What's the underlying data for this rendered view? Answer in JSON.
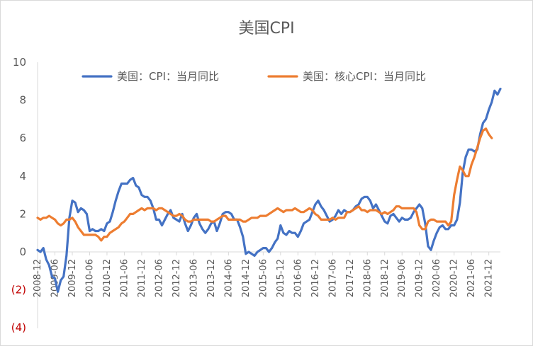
{
  "chart_data": {
    "type": "line",
    "title": "美国CPI",
    "xlabel": "",
    "ylabel": "",
    "ylim": [
      -4,
      10
    ],
    "y_ticks": [
      {
        "value": 10,
        "label": "10"
      },
      {
        "value": 8,
        "label": "8"
      },
      {
        "value": 6,
        "label": "6"
      },
      {
        "value": 4,
        "label": "4"
      },
      {
        "value": 2,
        "label": "2"
      },
      {
        "value": 0,
        "label": "0"
      },
      {
        "value": -2,
        "label": "(2)"
      },
      {
        "value": -4,
        "label": "(4)"
      }
    ],
    "grid": false,
    "legend_position": "top",
    "x_ticks": [
      "2008-12",
      "2009-06",
      "2009-12",
      "2010-06",
      "2010-12",
      "2011-06",
      "2011-12",
      "2012-06",
      "2012-12",
      "2013-06",
      "2013-12",
      "2014-06",
      "2014-12",
      "2015-06",
      "2015-12",
      "2016-06",
      "2016-12",
      "2017-06",
      "2017-12",
      "2018-06",
      "2018-12",
      "2019-06",
      "2019-12",
      "2020-06",
      "2020-12",
      "2021-06",
      "2021-12"
    ],
    "x_start": "2008-12",
    "series": [
      {
        "name": "美国：CPI：当月同比",
        "color": "#4472c4",
        "values": [
          0.1,
          0.0,
          0.2,
          -0.4,
          -0.7,
          -1.3,
          -1.4,
          -2.1,
          -1.5,
          -1.3,
          -0.2,
          1.8,
          2.7,
          2.6,
          2.1,
          2.3,
          2.2,
          2.0,
          1.1,
          1.2,
          1.1,
          1.1,
          1.2,
          1.1,
          1.5,
          1.6,
          2.1,
          2.7,
          3.2,
          3.6,
          3.6,
          3.6,
          3.8,
          3.9,
          3.5,
          3.4,
          3.0,
          2.9,
          2.9,
          2.7,
          2.3,
          1.7,
          1.7,
          1.4,
          1.7,
          2.0,
          2.2,
          1.8,
          1.7,
          1.6,
          2.0,
          1.5,
          1.1,
          1.4,
          1.8,
          2.0,
          1.5,
          1.2,
          1.0,
          1.2,
          1.5,
          1.6,
          1.1,
          1.5,
          2.0,
          2.1,
          2.1,
          2.0,
          1.7,
          1.7,
          1.3,
          0.8,
          -0.1,
          0.0,
          -0.1,
          -0.2,
          0.0,
          0.1,
          0.2,
          0.2,
          0.0,
          0.2,
          0.5,
          0.7,
          1.4,
          1.0,
          0.9,
          1.1,
          1.0,
          1.0,
          0.8,
          1.1,
          1.5,
          1.6,
          1.7,
          2.1,
          2.5,
          2.7,
          2.4,
          2.2,
          1.9,
          1.6,
          1.7,
          1.9,
          2.2,
          2.0,
          2.2,
          2.1,
          2.1,
          2.2,
          2.4,
          2.5,
          2.8,
          2.9,
          2.9,
          2.7,
          2.3,
          2.5,
          2.2,
          1.9,
          1.6,
          1.5,
          1.9,
          2.0,
          1.8,
          1.6,
          1.8,
          1.7,
          1.7,
          1.8,
          2.1,
          2.3,
          2.5,
          2.3,
          1.5,
          0.3,
          0.1,
          0.6,
          1.0,
          1.3,
          1.4,
          1.2,
          1.2,
          1.4,
          1.4,
          1.7,
          2.6,
          4.2,
          5.0,
          5.4,
          5.4,
          5.3,
          5.4,
          6.2,
          6.8,
          7.0,
          7.5,
          7.9,
          8.5,
          8.3,
          8.6
        ]
      },
      {
        "name": "美国：核心CPI：当月同比",
        "color": "#ed7d31",
        "values": [
          1.8,
          1.7,
          1.8,
          1.8,
          1.9,
          1.8,
          1.7,
          1.5,
          1.4,
          1.5,
          1.7,
          1.7,
          1.8,
          1.6,
          1.3,
          1.1,
          0.9,
          0.9,
          0.9,
          0.9,
          0.9,
          0.8,
          0.6,
          0.8,
          0.8,
          1.0,
          1.1,
          1.2,
          1.3,
          1.5,
          1.6,
          1.8,
          2.0,
          2.0,
          2.1,
          2.2,
          2.3,
          2.2,
          2.3,
          2.3,
          2.3,
          2.2,
          2.3,
          2.3,
          2.2,
          2.1,
          2.0,
          1.9,
          1.9,
          2.0,
          1.9,
          1.7,
          1.6,
          1.6,
          1.7,
          1.7,
          1.7,
          1.7,
          1.7,
          1.7,
          1.6,
          1.6,
          1.7,
          1.8,
          1.9,
          1.9,
          1.7,
          1.7,
          1.7,
          1.7,
          1.7,
          1.6,
          1.6,
          1.7,
          1.8,
          1.8,
          1.8,
          1.9,
          1.9,
          1.9,
          2.0,
          2.1,
          2.2,
          2.3,
          2.2,
          2.1,
          2.2,
          2.2,
          2.2,
          2.3,
          2.2,
          2.1,
          2.1,
          2.2,
          2.3,
          2.2,
          2.0,
          1.9,
          1.7,
          1.7,
          1.7,
          1.7,
          1.8,
          1.7,
          1.8,
          1.8,
          1.8,
          2.1,
          2.1,
          2.2,
          2.3,
          2.4,
          2.2,
          2.2,
          2.1,
          2.2,
          2.2,
          2.2,
          2.1,
          2.0,
          2.1,
          2.0,
          2.1,
          2.2,
          2.4,
          2.4,
          2.3,
          2.3,
          2.3,
          2.3,
          2.3,
          2.1,
          1.4,
          1.2,
          1.2,
          1.6,
          1.7,
          1.7,
          1.6,
          1.6,
          1.6,
          1.6,
          1.4,
          1.6,
          3.0,
          3.8,
          4.5,
          4.3,
          4.0,
          4.0,
          4.6,
          5.0,
          5.5,
          6.0,
          6.4,
          6.5,
          6.2,
          6.0
        ]
      }
    ]
  }
}
